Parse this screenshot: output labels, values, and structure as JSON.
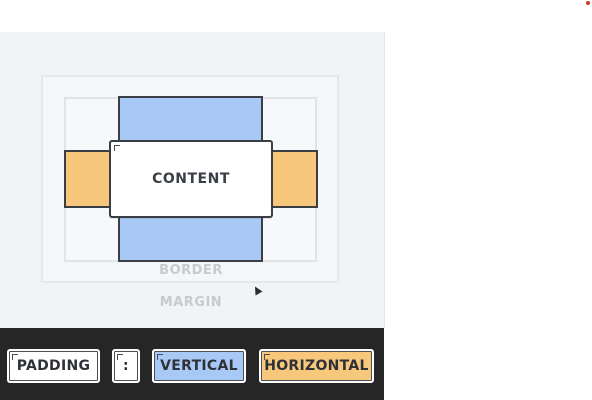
{
  "diagram": {
    "content_label": "CONTENT",
    "border_label": "BORDER",
    "margin_label": "MARGIN"
  },
  "toolbar": {
    "padding_label": "PADDING",
    "separator_label": ":",
    "vertical_label": "VERTICAL",
    "horizontal_label": "HORIZONTAL"
  },
  "colors": {
    "vertical_padding": "#a8c9f5",
    "horizontal_padding": "#f7c77c",
    "outline": "#3a3e45",
    "bar_background": "#262626",
    "panel_background": "#f2f3f5",
    "faded_label": "#c7cace"
  },
  "icons": {
    "cursor": "mouse-pointer-icon",
    "corner_marks": "corner-bracket-icon",
    "top_right_indicator": "red-dot-icon"
  }
}
